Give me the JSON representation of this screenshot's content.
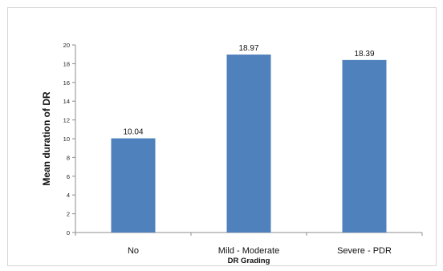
{
  "chart_data": {
    "type": "bar",
    "title": "",
    "xlabel": "DR Grading",
    "ylabel": "Mean duration of  DR",
    "categories": [
      "No",
      "Mild - Moderate",
      "Severe - PDR"
    ],
    "values": [
      10.04,
      18.97,
      18.39
    ],
    "data_labels": [
      "10.04",
      "18.97",
      "18.39"
    ],
    "ylim": [
      0,
      20
    ],
    "yticks": [
      "0",
      "2",
      "4",
      "6",
      "8",
      "10",
      "12",
      "14",
      "16",
      "18",
      "20"
    ],
    "grid": false,
    "legend": "none",
    "bar_color": "#4f81bd"
  }
}
